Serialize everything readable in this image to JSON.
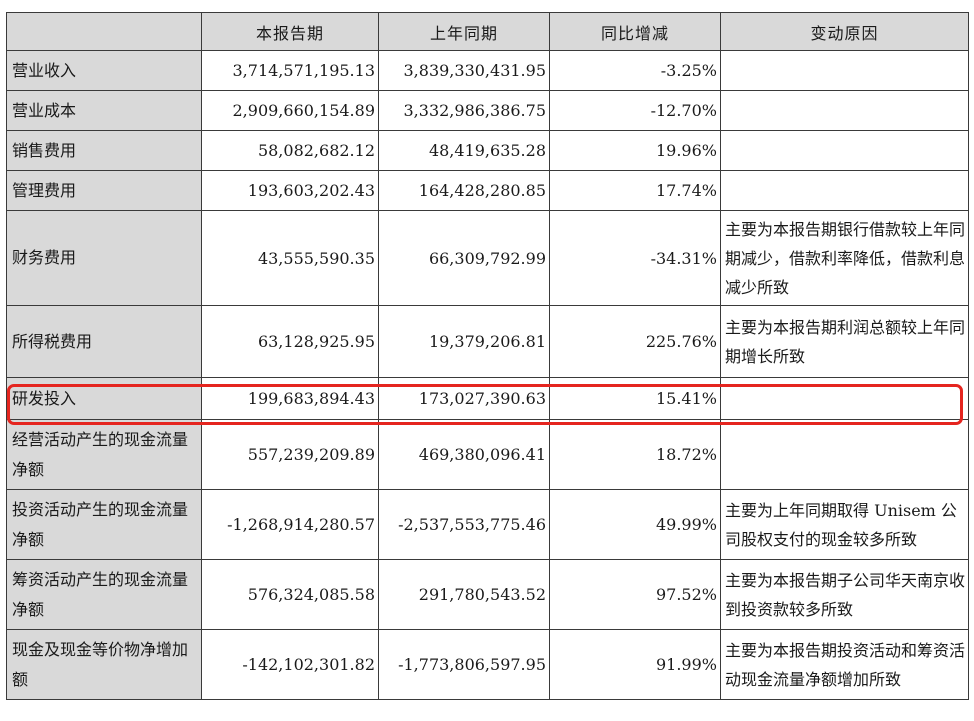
{
  "table": {
    "headers": [
      "",
      "本报告期",
      "上年同期",
      "同比增减",
      "变动原因"
    ],
    "rows": [
      {
        "label": "营业收入",
        "current": "3,714,571,195.13",
        "previous": "3,839,330,431.95",
        "change": "-3.25%",
        "reason": ""
      },
      {
        "label": "营业成本",
        "current": "2,909,660,154.89",
        "previous": "3,332,986,386.75",
        "change": "-12.70%",
        "reason": ""
      },
      {
        "label": "销售费用",
        "current": "58,082,682.12",
        "previous": "48,419,635.28",
        "change": "19.96%",
        "reason": ""
      },
      {
        "label": "管理费用",
        "current": "193,603,202.43",
        "previous": "164,428,280.85",
        "change": "17.74%",
        "reason": ""
      },
      {
        "label": "财务费用",
        "current": "43,555,590.35",
        "previous": "66,309,792.99",
        "change": "-34.31%",
        "reason": "主要为本报告期银行借款较上年同期减少，借款利率降低，借款利息减少所致"
      },
      {
        "label": "所得税费用",
        "current": "63,128,925.95",
        "previous": "19,379,206.81",
        "change": "225.76%",
        "reason": "主要为本报告期利润总额较上年同期增长所致"
      },
      {
        "label": "研发投入",
        "current": "199,683,894.43",
        "previous": "173,027,390.63",
        "change": "15.41%",
        "reason": ""
      },
      {
        "label": "经营活动产生的现金流量净额",
        "current": "557,239,209.89",
        "previous": "469,380,096.41",
        "change": "18.72%",
        "reason": ""
      },
      {
        "label": "投资活动产生的现金流量净额",
        "current": "-1,268,914,280.57",
        "previous": "-2,537,553,775.46",
        "change": "49.99%",
        "reason": "主要为上年同期取得 Unisem 公司股权支付的现金较多所致"
      },
      {
        "label": "筹资活动产生的现金流量净额",
        "current": "576,324,085.58",
        "previous": "291,780,543.52",
        "change": "97.52%",
        "reason": "主要为本报告期子公司华天南京收到投资款较多所致"
      },
      {
        "label": "现金及现金等价物净增加额",
        "current": "-142,102,301.82",
        "previous": "-1,773,806,597.95",
        "change": "91.99%",
        "reason": "主要为本报告期投资活动和筹资活动现金流量净额增加所致"
      }
    ]
  },
  "highlight": {
    "row_label": "研发投入",
    "color": "#e5251f"
  },
  "colors": {
    "header_bg": "#d9d9d9",
    "label_bg": "#d9d9d9",
    "border": "#3a3a3a"
  }
}
